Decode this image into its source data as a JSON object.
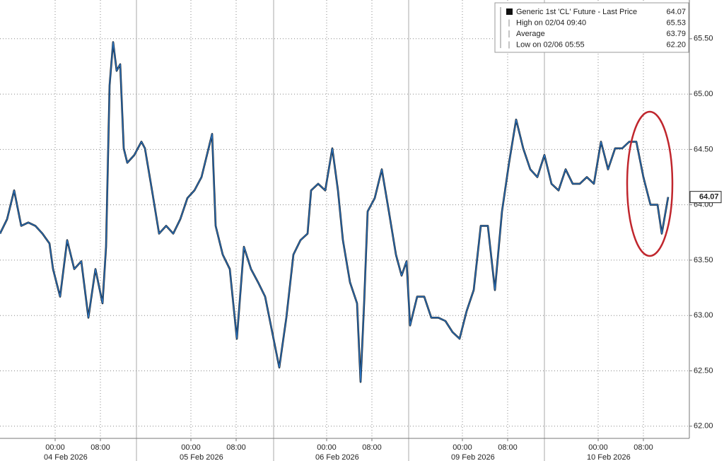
{
  "chart_data": {
    "type": "line",
    "x": [
      -9.75,
      -8.5,
      -7.25,
      -6,
      -4.75,
      -3.5,
      -2.25,
      -1,
      -0.375,
      0.875,
      2.125,
      3.375,
      4.625,
      5.875,
      7.125,
      8.375,
      9,
      9.625,
      10.25,
      10.875,
      11.5,
      12.125,
      12.75,
      14,
      15.25,
      15.875,
      17.125,
      18.375,
      19.625,
      20.875,
      22.125,
      23.375,
      24.625,
      25.875,
      27.125,
      27.75,
      28.375,
      29.625,
      30.875,
      32.125,
      33.375,
      34.625,
      35.875,
      37.125,
      38.375,
      39.625,
      40.875,
      42.125,
      43.375,
      44.625,
      45.25,
      46.5,
      47.75,
      49,
      50,
      50.875,
      52.125,
      53.375,
      54,
      54.625,
      55.25,
      56.5,
      57.75,
      59,
      60.25,
      61.25,
      62.125,
      62.75,
      64,
      65.25,
      66.5,
      67.75,
      69,
      70.25,
      71.5,
      72.75,
      74,
      75.25,
      76.5,
      77.75,
      79,
      80.25,
      81.5,
      82.75,
      84,
      85.25,
      86.5,
      87.75,
      89,
      90.25,
      91.5,
      92.75,
      94,
      95.25,
      96.5,
      97.75,
      99,
      100.25,
      101.5,
      102.75,
      104,
      105.25,
      106.5,
      107.25,
      108.375
    ],
    "series": [
      {
        "name": "Generic 1st 'CL' Future - Last Price",
        "color": "#2a73c0",
        "values": [
          63.74,
          63.87,
          64.13,
          63.81,
          63.84,
          63.81,
          63.74,
          63.65,
          63.42,
          63.17,
          63.68,
          63.42,
          63.49,
          62.98,
          63.42,
          63.11,
          63.62,
          65.08,
          65.47,
          65.21,
          65.27,
          64.51,
          64.38,
          64.45,
          64.57,
          64.51,
          64.13,
          63.74,
          63.81,
          63.74,
          63.87,
          64.06,
          64.13,
          64.25,
          64.51,
          64.64,
          63.81,
          63.55,
          63.42,
          62.79,
          63.62,
          63.42,
          63.3,
          63.17,
          62.85,
          62.53,
          62.98,
          63.55,
          63.68,
          63.74,
          64.13,
          64.19,
          64.13,
          64.51,
          64.13,
          63.68,
          63.3,
          63.11,
          62.4,
          63.11,
          63.94,
          64.06,
          64.32,
          63.94,
          63.55,
          63.36,
          63.49,
          62.91,
          63.17,
          63.17,
          62.98,
          62.98,
          62.95,
          62.85,
          62.79,
          63.04,
          63.23,
          63.81,
          63.81,
          63.23,
          63.94,
          64.38,
          64.77,
          64.51,
          64.32,
          64.25,
          64.45,
          64.19,
          64.13,
          64.32,
          64.19,
          64.19,
          64.25,
          64.19,
          64.57,
          64.32,
          64.51,
          64.51,
          64.57,
          64.57,
          64.25,
          64.0,
          64.0,
          63.74,
          64.07
        ]
      }
    ],
    "xlim": [
      -9.75,
      112.125
    ],
    "xticks": [
      {
        "value": 0,
        "label": "00:00"
      },
      {
        "value": 8,
        "label": "08:00"
      },
      {
        "value": 24,
        "label": "00:00"
      },
      {
        "value": 32,
        "label": "08:00"
      },
      {
        "value": 48,
        "label": "00:00"
      },
      {
        "value": 56,
        "label": "08:00"
      },
      {
        "value": 72,
        "label": "00:00"
      },
      {
        "value": 80,
        "label": "08:00"
      },
      {
        "value": 96,
        "label": "00:00"
      },
      {
        "value": 104,
        "label": "08:00"
      }
    ],
    "date_labels": [
      {
        "value": 0,
        "label": "04 Feb 2026"
      },
      {
        "value": 24,
        "label": "05 Feb 2026"
      },
      {
        "value": 48,
        "label": "06 Feb 2026"
      },
      {
        "value": 72,
        "label": "09 Feb 2026"
      },
      {
        "value": 96,
        "label": "10 Feb 2026"
      }
    ],
    "session_breaks": [
      14.375,
      38.625,
      62.5,
      86.5
    ],
    "ylim": [
      61.89,
      65.85
    ],
    "yticks": [
      {
        "value": 62,
        "label": "62.00"
      },
      {
        "value": 62.5,
        "label": "62.50"
      },
      {
        "value": 63,
        "label": "63.00"
      },
      {
        "value": 63.5,
        "label": "63.50"
      },
      {
        "value": 64,
        "label": "64.00"
      },
      {
        "value": 64.5,
        "label": "64.50"
      },
      {
        "value": 65,
        "label": "65.00"
      },
      {
        "value": 65.5,
        "label": "65.50"
      }
    ],
    "grid": true,
    "legend": [
      {
        "label": "Generic 1st 'CL' Future - Last Price",
        "value": 64.07
      },
      {
        "label": "High on 02/04 09:40",
        "value": 65.53
      },
      {
        "label": "Average",
        "value": 63.79
      },
      {
        "label": "Low on 02/06 05:55",
        "value": {
          "value": 62.2,
          "label": "62.20"
        }
      }
    ]
  }
}
